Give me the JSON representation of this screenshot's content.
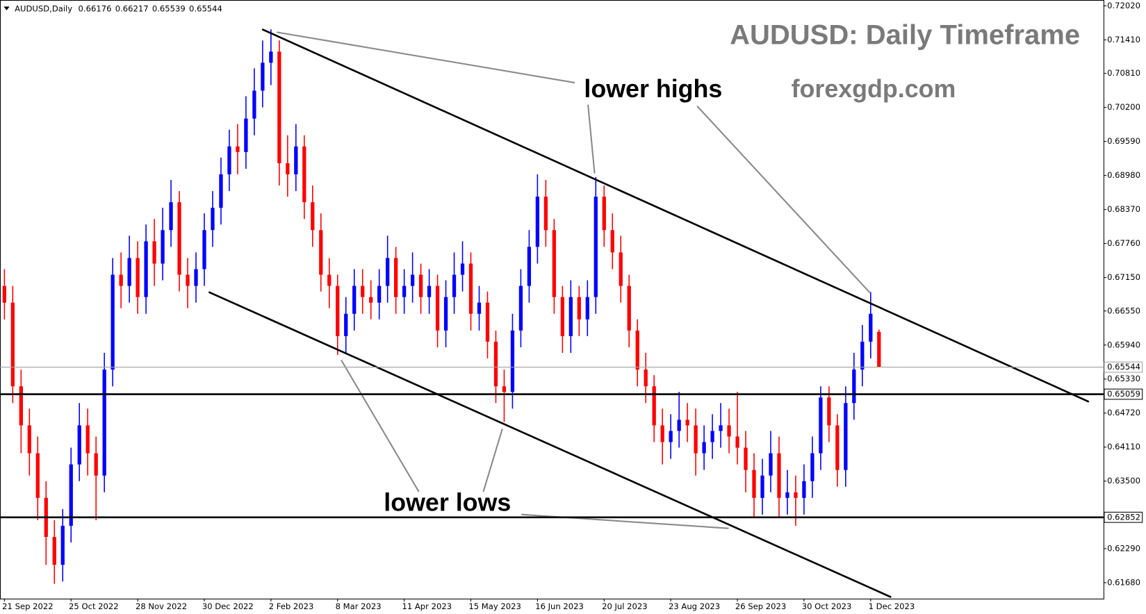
{
  "chart_data": {
    "type": "candlestick",
    "title": "AUDUSD: Daily Timeframe",
    "website": "forexgdp.com",
    "upper_annotation": "lower highs",
    "lower_annotation": "lower lows",
    "header": {
      "symbol": "AUDUSD,Daily",
      "ohlc": [
        0.66176,
        0.66217,
        0.65539,
        0.65544
      ]
    },
    "up_color": "#0000ff",
    "down_color": "#ff0000",
    "ylim": [
      0.61394,
      0.72125
    ],
    "yticks": [
      {
        "value": 0.7202,
        "label": "0.72020"
      },
      {
        "value": 0.7141,
        "label": "0.71410"
      },
      {
        "value": 0.7081,
        "label": "0.70810"
      },
      {
        "value": 0.702,
        "label": "0.70200"
      },
      {
        "value": 0.6959,
        "label": "0.69590"
      },
      {
        "value": 0.6898,
        "label": "0.68980"
      },
      {
        "value": 0.6837,
        "label": "0.68370"
      },
      {
        "value": 0.6776,
        "label": "0.67760"
      },
      {
        "value": 0.6715,
        "label": "0.67150"
      },
      {
        "value": 0.6655,
        "label": "0.66550"
      },
      {
        "value": 0.6594,
        "label": "0.65940"
      },
      {
        "value": 0.6533,
        "label": "0.65330"
      },
      {
        "value": 0.6472,
        "label": "0.64720"
      },
      {
        "value": 0.6411,
        "label": "0.64110"
      },
      {
        "value": 0.635,
        "label": "0.63500"
      },
      {
        "value": 0.6229,
        "label": "0.62290"
      },
      {
        "value": 0.6168,
        "label": "0.61680"
      }
    ],
    "hlines": [
      {
        "value": 0.65544,
        "label": "0.65544",
        "color": "#a0a0a0"
      },
      {
        "value": 0.65059,
        "label": "0.65059",
        "color": "#000000"
      },
      {
        "value": 0.62852,
        "label": "0.62852",
        "color": "#000000"
      }
    ],
    "categories": [
      "21 Sep 2022",
      null,
      null,
      null,
      null,
      null,
      null,
      null,
      "25 Oct 2022",
      null,
      null,
      null,
      null,
      null,
      null,
      null,
      "28 Nov 2022",
      null,
      null,
      null,
      null,
      null,
      null,
      null,
      "30 Dec 2022",
      null,
      null,
      null,
      null,
      null,
      null,
      null,
      "2 Feb 2023",
      null,
      null,
      null,
      null,
      null,
      null,
      null,
      "8 Mar 2023",
      null,
      null,
      null,
      null,
      null,
      null,
      null,
      "11 Apr 2023",
      null,
      null,
      null,
      null,
      null,
      null,
      null,
      "15 May 2023",
      null,
      null,
      null,
      null,
      null,
      null,
      null,
      "16 Jun 2023",
      null,
      null,
      null,
      null,
      null,
      null,
      null,
      "20 Jul 2023",
      null,
      null,
      null,
      null,
      null,
      null,
      null,
      "23 Aug 2023",
      null,
      null,
      null,
      null,
      null,
      null,
      null,
      "26 Sep 2023",
      null,
      null,
      null,
      null,
      null,
      null,
      null,
      "30 Oct 2023",
      null,
      null,
      null,
      null,
      null,
      null,
      null,
      "1 Dec 2023",
      null
    ],
    "open": [
      0.67,
      0.667,
      0.652,
      0.645,
      0.64,
      0.632,
      0.625,
      0.62,
      0.627,
      0.638,
      0.645,
      0.64,
      0.636,
      0.655,
      0.672,
      0.67,
      0.675,
      0.668,
      0.678,
      0.674,
      0.68,
      0.685,
      0.672,
      0.67,
      0.673,
      0.68,
      0.684,
      0.69,
      0.695,
      0.694,
      0.7,
      0.705,
      0.71,
      0.712,
      0.692,
      0.69,
      0.695,
      0.685,
      0.68,
      0.672,
      0.67,
      0.661,
      0.665,
      0.67,
      0.668,
      0.667,
      0.67,
      0.675,
      0.668,
      0.67,
      0.672,
      0.668,
      0.67,
      0.662,
      0.668,
      0.672,
      0.674,
      0.665,
      0.667,
      0.66,
      0.652,
      0.651,
      0.662,
      0.67,
      0.677,
      0.686,
      0.68,
      0.668,
      0.661,
      0.668,
      0.664,
      0.668,
      0.686,
      0.68,
      0.676,
      0.67,
      0.662,
      0.655,
      0.652,
      0.645,
      0.642,
      0.644,
      0.646,
      0.645,
      0.64,
      0.642,
      0.644,
      0.645,
      0.643,
      0.641,
      0.637,
      0.632,
      0.636,
      0.64,
      0.632,
      0.633,
      0.632,
      0.635,
      0.64,
      0.65,
      0.645,
      0.637,
      0.649,
      0.655,
      0.66,
      0.66176
    ],
    "high": [
      0.673,
      0.67,
      0.655,
      0.648,
      0.643,
      0.635,
      0.628,
      0.63,
      0.641,
      0.649,
      0.648,
      0.643,
      0.658,
      0.675,
      0.676,
      0.679,
      0.678,
      0.681,
      0.682,
      0.684,
      0.689,
      0.687,
      0.675,
      0.676,
      0.683,
      0.687,
      0.693,
      0.698,
      0.699,
      0.704,
      0.709,
      0.714,
      0.716,
      0.714,
      0.697,
      0.699,
      0.697,
      0.688,
      0.683,
      0.675,
      0.672,
      0.668,
      0.673,
      0.673,
      0.671,
      0.673,
      0.679,
      0.677,
      0.673,
      0.676,
      0.674,
      0.673,
      0.672,
      0.671,
      0.676,
      0.678,
      0.676,
      0.67,
      0.669,
      0.662,
      0.655,
      0.665,
      0.673,
      0.68,
      0.69,
      0.689,
      0.682,
      0.67,
      0.671,
      0.67,
      0.671,
      0.6895,
      0.688,
      0.683,
      0.679,
      0.672,
      0.664,
      0.658,
      0.654,
      0.648,
      0.647,
      0.651,
      0.649,
      0.648,
      0.645,
      0.647,
      0.649,
      0.648,
      0.651,
      0.644,
      0.64,
      0.639,
      0.644,
      0.643,
      0.637,
      0.636,
      0.638,
      0.643,
      0.652,
      0.652,
      0.647,
      0.652,
      0.658,
      0.663,
      0.6689,
      0.66217
    ],
    "low": [
      0.664,
      0.649,
      0.64,
      0.636,
      0.628,
      0.62,
      0.6166,
      0.617,
      0.624,
      0.635,
      0.636,
      0.628,
      0.633,
      0.652,
      0.666,
      0.667,
      0.665,
      0.665,
      0.67,
      0.671,
      0.677,
      0.669,
      0.666,
      0.667,
      0.67,
      0.677,
      0.681,
      0.687,
      0.69,
      0.691,
      0.697,
      0.702,
      0.706,
      0.688,
      0.686,
      0.687,
      0.682,
      0.677,
      0.669,
      0.666,
      0.6576,
      0.658,
      0.662,
      0.665,
      0.664,
      0.664,
      0.667,
      0.665,
      0.665,
      0.667,
      0.665,
      0.665,
      0.659,
      0.659,
      0.665,
      0.669,
      0.662,
      0.662,
      0.657,
      0.649,
      0.6456,
      0.648,
      0.659,
      0.667,
      0.674,
      0.677,
      0.665,
      0.658,
      0.658,
      0.661,
      0.661,
      0.665,
      0.677,
      0.673,
      0.667,
      0.659,
      0.652,
      0.649,
      0.642,
      0.638,
      0.639,
      0.641,
      0.642,
      0.636,
      0.637,
      0.639,
      0.641,
      0.64,
      0.638,
      0.633,
      0.6285,
      0.629,
      0.633,
      0.6285,
      0.629,
      0.627,
      0.629,
      0.632,
      0.637,
      0.642,
      0.634,
      0.634,
      0.646,
      0.652,
      0.657,
      0.65539
    ],
    "close": [
      0.667,
      0.652,
      0.645,
      0.64,
      0.632,
      0.625,
      0.62,
      0.627,
      0.638,
      0.645,
      0.64,
      0.636,
      0.655,
      0.672,
      0.67,
      0.675,
      0.668,
      0.678,
      0.674,
      0.68,
      0.685,
      0.672,
      0.67,
      0.673,
      0.68,
      0.684,
      0.69,
      0.695,
      0.694,
      0.7,
      0.705,
      0.71,
      0.712,
      0.692,
      0.69,
      0.695,
      0.685,
      0.68,
      0.672,
      0.67,
      0.661,
      0.665,
      0.67,
      0.668,
      0.667,
      0.67,
      0.675,
      0.668,
      0.67,
      0.672,
      0.668,
      0.67,
      0.662,
      0.668,
      0.672,
      0.674,
      0.665,
      0.667,
      0.66,
      0.652,
      0.651,
      0.662,
      0.67,
      0.677,
      0.686,
      0.68,
      0.668,
      0.661,
      0.668,
      0.664,
      0.668,
      0.686,
      0.68,
      0.676,
      0.67,
      0.662,
      0.655,
      0.652,
      0.645,
      0.642,
      0.644,
      0.646,
      0.645,
      0.64,
      0.642,
      0.644,
      0.645,
      0.643,
      0.641,
      0.637,
      0.632,
      0.636,
      0.64,
      0.632,
      0.633,
      0.632,
      0.635,
      0.64,
      0.65,
      0.645,
      0.637,
      0.649,
      0.655,
      0.66,
      0.665,
      0.65544
    ]
  }
}
